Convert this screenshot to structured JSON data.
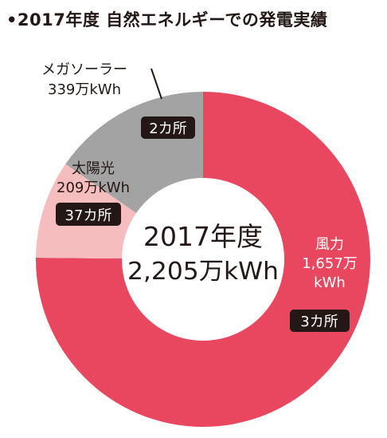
{
  "title": "•2017年度 自然エネルギーでの発電実績",
  "center": {
    "line1": "2017年度",
    "line2": "2,205万kWh"
  },
  "chart_data": {
    "type": "pie",
    "donut": true,
    "title": "2017年度 自然エネルギーでの発電実績",
    "total_label": "2,205万kWh",
    "series": [
      {
        "name": "風力",
        "value": 1657,
        "value_label": "1,657万 kWh",
        "sites": "3カ所",
        "color": "#e8475f"
      },
      {
        "name": "太陽光",
        "value": 209,
        "value_label": "209万kWh",
        "sites": "37カ所",
        "color": "#f5bdbd"
      },
      {
        "name": "メガソーラー",
        "value": 339,
        "value_label": "339万kWh",
        "sites": "2カ所",
        "color": "#a3a3a3"
      }
    ],
    "colors": {
      "badge_bg": "#231815",
      "badge_text": "#ffffff",
      "text": "#231815"
    }
  }
}
